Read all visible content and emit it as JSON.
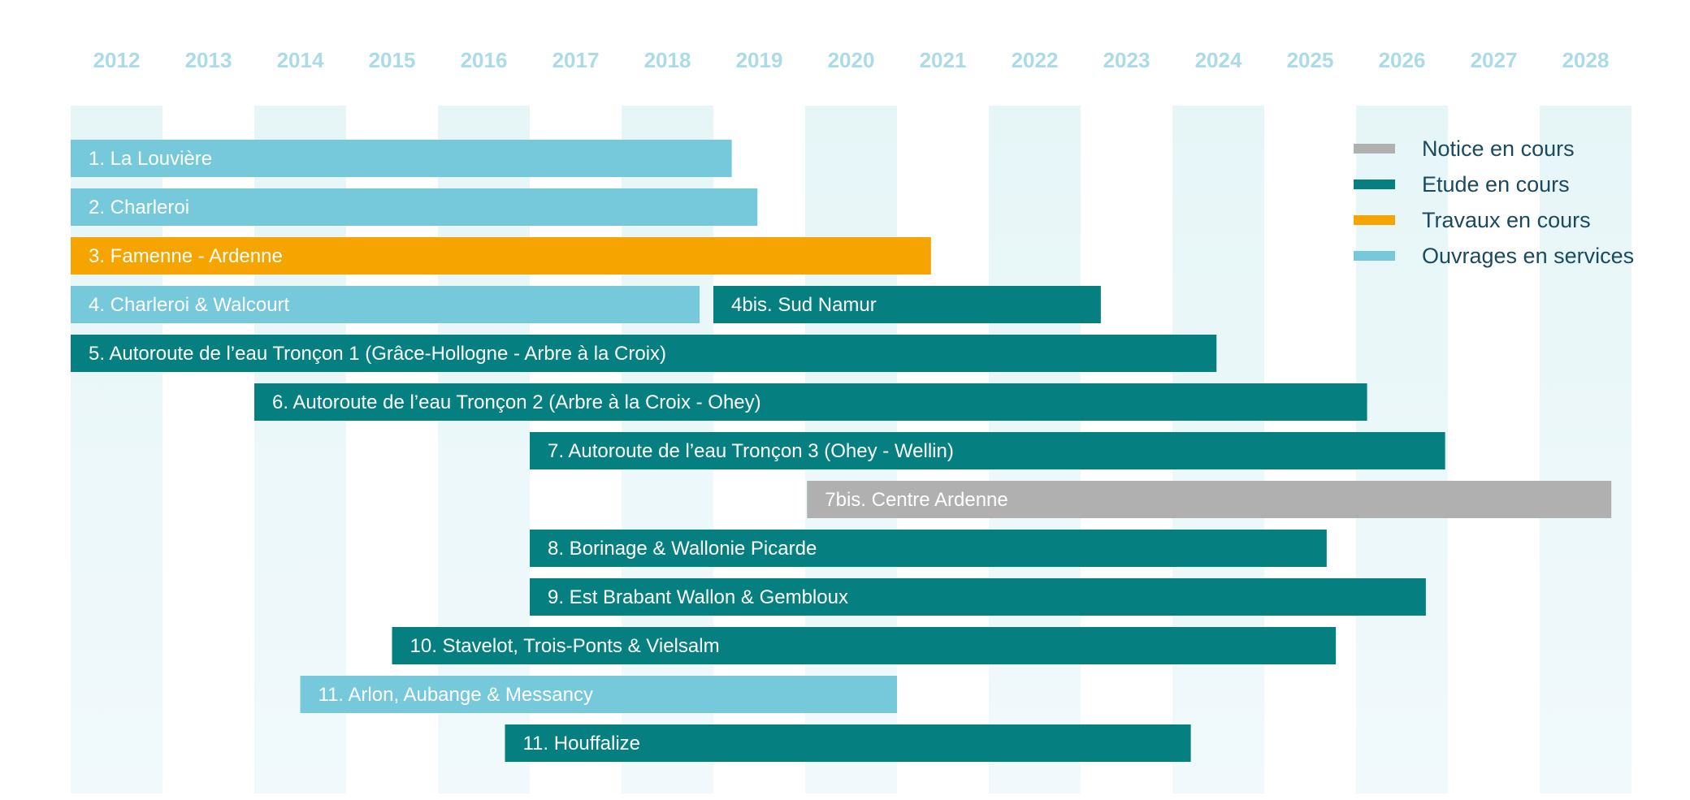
{
  "chart_data": {
    "type": "gantt",
    "x_unit": "year",
    "x_range": [
      2012,
      2028
    ],
    "years": [
      "2012",
      "2013",
      "2014",
      "2015",
      "2016",
      "2017",
      "2018",
      "2019",
      "2020",
      "2021",
      "2022",
      "2023",
      "2024",
      "2025",
      "2026",
      "2027",
      "2028"
    ],
    "legend": [
      {
        "key": "notice",
        "label": "Notice en cours",
        "color": "#b0b0b0"
      },
      {
        "key": "etude",
        "label": "Etude en cours",
        "color": "#057f80"
      },
      {
        "key": "travaux",
        "label": "Travaux en cours",
        "color": "#f5a400"
      },
      {
        "key": "ouvrages",
        "label": "Ouvrages en services",
        "color": "#76c9db"
      }
    ],
    "tasks": [
      {
        "row": 1,
        "label": "1.  La Louvière",
        "start": 2012.0,
        "end": 2019.2,
        "status": "ouvrages"
      },
      {
        "row": 2,
        "label": "2. Charleroi",
        "start": 2012.0,
        "end": 2019.48,
        "status": "ouvrages"
      },
      {
        "row": 3,
        "label": "3. Famenne - Ardenne",
        "start": 2012.0,
        "end": 2021.37,
        "status": "travaux"
      },
      {
        "row": 4,
        "label": "4. Charleroi & Walcourt",
        "start": 2012.0,
        "end": 2018.85,
        "status": "ouvrages"
      },
      {
        "row": 4,
        "label": "4bis.  Sud Namur",
        "start": 2019.0,
        "end": 2023.22,
        "status": "etude"
      },
      {
        "row": 5,
        "label": "5. Autoroute de l’eau Tronçon 1 (Grâce-Hollogne - Arbre à la Croix)",
        "start": 2012.0,
        "end": 2024.48,
        "status": "etude"
      },
      {
        "row": 6,
        "label": "6. Autoroute de l’eau Tronçon 2 (Arbre à la Croix - Ohey)",
        "start": 2014.0,
        "end": 2026.12,
        "status": "etude"
      },
      {
        "row": 7,
        "label": "7.  Autoroute de l’eau Tronçon 3 (Ohey - Wellin)",
        "start": 2017.0,
        "end": 2026.97,
        "status": "etude"
      },
      {
        "row": 8,
        "label": "7bis.   Centre Ardenne",
        "start": 2020.02,
        "end": 2028.78,
        "status": "notice"
      },
      {
        "row": 9,
        "label": "8. Borinage & Wallonie Picarde",
        "start": 2017.0,
        "end": 2025.68,
        "status": "etude"
      },
      {
        "row": 10,
        "label": "9. Est Brabant Wallon & Gembloux",
        "start": 2017.0,
        "end": 2026.76,
        "status": "etude"
      },
      {
        "row": 11,
        "label": "10.  Stavelot, Trois-Ponts & Vielsalm",
        "start": 2015.5,
        "end": 2025.78,
        "status": "etude"
      },
      {
        "row": 12,
        "label": "11.  Arlon, Aubange & Messancy",
        "start": 2014.5,
        "end": 2021.0,
        "status": "ouvrages"
      },
      {
        "row": 13,
        "label": "11.  Houffalize",
        "start": 2016.73,
        "end": 2024.2,
        "status": "etude"
      }
    ]
  }
}
